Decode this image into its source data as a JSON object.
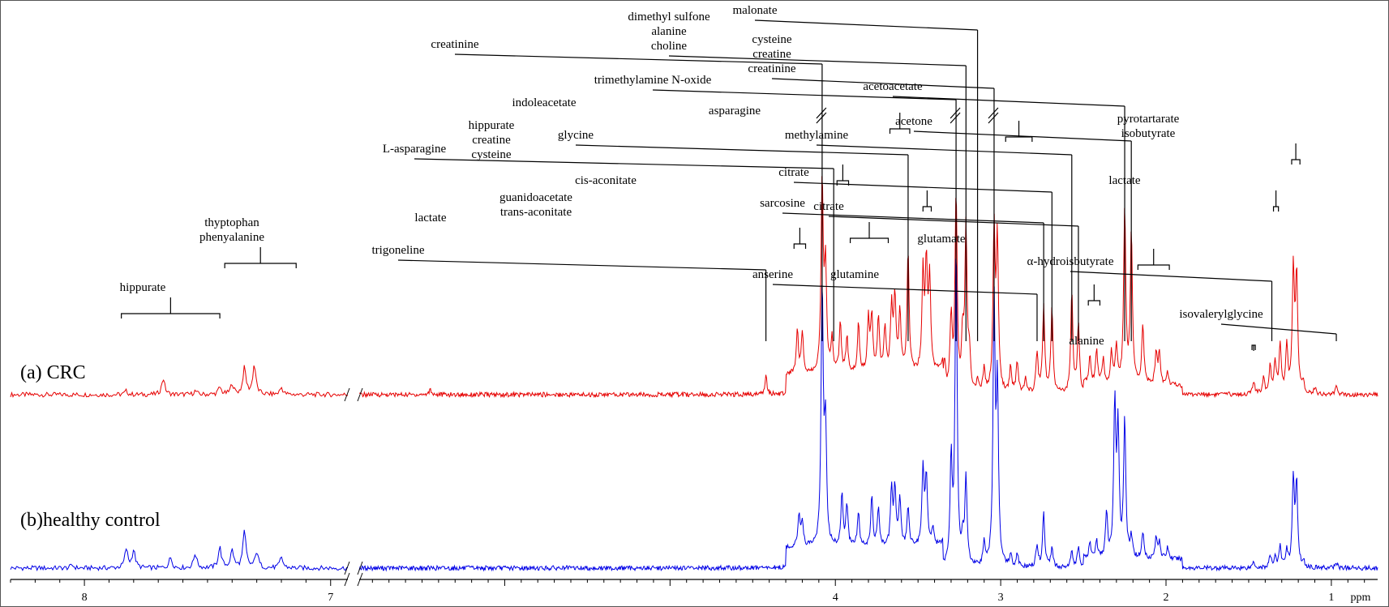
{
  "chart_data": {
    "type": "line",
    "title": "",
    "xlabel": "ppm",
    "ylabel": "",
    "xlim": [
      8.3,
      0.72
    ],
    "axis_break": [
      6.93,
      6.88
    ],
    "ticks": [
      {
        "value": 8,
        "label": "8"
      },
      {
        "value": 7,
        "label": "7"
      },
      {
        "value": 4,
        "label": "4"
      },
      {
        "value": 3,
        "label": "3"
      },
      {
        "value": 2,
        "label": "2"
      },
      {
        "value": 1,
        "label": "1"
      }
    ],
    "series": [
      {
        "name": "(a) CRC",
        "color": "#e60000",
        "baseline_note": "upper trace",
        "peaks": [
          [
            7.83,
            0.06
          ],
          [
            7.68,
            0.28
          ],
          [
            7.55,
            0.06
          ],
          [
            7.45,
            0.12
          ],
          [
            7.4,
            0.18
          ],
          [
            7.35,
            0.45
          ],
          [
            7.31,
            0.5
          ],
          [
            7.2,
            0.12
          ],
          [
            6.45,
            0.1
          ],
          [
            4.42,
            0.33
          ],
          [
            4.23,
            0.72
          ],
          [
            4.2,
            0.68
          ],
          [
            4.08,
            3.3
          ],
          [
            4.06,
            1.8
          ],
          [
            4.02,
            0.58
          ],
          [
            3.97,
            0.85
          ],
          [
            3.93,
            0.62
          ],
          [
            3.86,
            0.86
          ],
          [
            3.8,
            0.9
          ],
          [
            3.78,
            0.95
          ],
          [
            3.74,
            0.92
          ],
          [
            3.7,
            0.8
          ],
          [
            3.66,
            1.1
          ],
          [
            3.64,
            1.25
          ],
          [
            3.61,
            1.05
          ],
          [
            3.56,
            2.05
          ],
          [
            3.47,
            1.65
          ],
          [
            3.45,
            1.8
          ],
          [
            3.43,
            1.58
          ],
          [
            3.34,
            0.55
          ],
          [
            3.3,
            1.3
          ],
          [
            3.27,
            3.4
          ],
          [
            3.23,
            0.9
          ],
          [
            3.21,
            2.8
          ],
          [
            3.19,
            0.65
          ],
          [
            3.14,
            0.18
          ],
          [
            3.1,
            0.4
          ],
          [
            3.04,
            2.8
          ],
          [
            3.02,
            2.6
          ],
          [
            2.94,
            0.45
          ],
          [
            2.9,
            0.55
          ],
          [
            2.85,
            0.3
          ],
          [
            2.78,
            0.7
          ],
          [
            2.74,
            1.5
          ],
          [
            2.69,
            1.5
          ],
          [
            2.57,
            1.75
          ],
          [
            2.53,
            1.2
          ],
          [
            2.46,
            0.45
          ],
          [
            2.42,
            0.6
          ],
          [
            2.38,
            0.42
          ],
          [
            2.33,
            0.55
          ],
          [
            2.3,
            0.65
          ],
          [
            2.25,
            3.0
          ],
          [
            2.21,
            2.6
          ],
          [
            2.14,
            1.05
          ],
          [
            2.06,
            0.55
          ],
          [
            2.04,
            0.55
          ],
          [
            1.99,
            0.22
          ],
          [
            1.47,
            0.22
          ],
          [
            1.41,
            0.3
          ],
          [
            1.37,
            0.48
          ],
          [
            1.34,
            0.55
          ],
          [
            1.31,
            0.85
          ],
          [
            1.27,
            0.78
          ],
          [
            1.23,
            2.1
          ],
          [
            1.21,
            2.0
          ],
          [
            1.17,
            0.15
          ],
          [
            1.1,
            0.12
          ],
          [
            0.97,
            0.12
          ]
        ]
      },
      {
        "name": "(b)healthy control",
        "color": "#0000e6",
        "baseline_note": "lower trace",
        "peaks": [
          [
            8.05,
            0.05
          ],
          [
            7.83,
            0.32
          ],
          [
            7.8,
            0.3
          ],
          [
            7.65,
            0.18
          ],
          [
            7.55,
            0.25
          ],
          [
            7.45,
            0.35
          ],
          [
            7.4,
            0.3
          ],
          [
            7.35,
            0.62
          ],
          [
            7.3,
            0.28
          ],
          [
            7.2,
            0.18
          ],
          [
            4.22,
            0.55
          ],
          [
            4.2,
            0.45
          ],
          [
            4.08,
            4.5
          ],
          [
            4.06,
            2.0
          ],
          [
            3.96,
            0.9
          ],
          [
            3.93,
            0.7
          ],
          [
            3.86,
            0.6
          ],
          [
            3.78,
            0.85
          ],
          [
            3.74,
            0.65
          ],
          [
            3.66,
            1.0
          ],
          [
            3.64,
            0.95
          ],
          [
            3.61,
            0.8
          ],
          [
            3.56,
            0.7
          ],
          [
            3.47,
            1.35
          ],
          [
            3.45,
            1.2
          ],
          [
            3.41,
            0.3
          ],
          [
            3.3,
            1.8
          ],
          [
            3.27,
            5.5
          ],
          [
            3.23,
            0.4
          ],
          [
            3.21,
            1.5
          ],
          [
            3.1,
            0.4
          ],
          [
            3.04,
            4.5
          ],
          [
            3.02,
            3.0
          ],
          [
            2.94,
            0.2
          ],
          [
            2.9,
            0.22
          ],
          [
            2.78,
            0.4
          ],
          [
            2.74,
            0.95
          ],
          [
            2.69,
            0.35
          ],
          [
            2.57,
            0.3
          ],
          [
            2.53,
            0.35
          ],
          [
            2.46,
            0.25
          ],
          [
            2.42,
            0.3
          ],
          [
            2.36,
            0.75
          ],
          [
            2.31,
            2.6
          ],
          [
            2.29,
            2.2
          ],
          [
            2.25,
            2.4
          ],
          [
            2.21,
            0.35
          ],
          [
            2.14,
            0.45
          ],
          [
            2.06,
            0.35
          ],
          [
            2.04,
            0.3
          ],
          [
            1.99,
            0.2
          ],
          [
            1.47,
            0.12
          ],
          [
            1.37,
            0.2
          ],
          [
            1.34,
            0.2
          ],
          [
            1.31,
            0.35
          ],
          [
            1.27,
            0.3
          ],
          [
            1.23,
            1.5
          ],
          [
            1.21,
            1.4
          ],
          [
            1.17,
            0.1
          ],
          [
            0.97,
            0.1
          ]
        ]
      }
    ],
    "broken_peaks": [
      {
        "x": 4.08,
        "series": "(a) CRC"
      },
      {
        "x": 3.27,
        "series": "(a) CRC"
      },
      {
        "x": 3.04,
        "series": "(a) CRC"
      }
    ],
    "annotations": [
      {
        "lines": [
          "hippurate"
        ],
        "bracket": [
          7.85,
          7.45
        ],
        "level": 0.55
      },
      {
        "lines": [
          "thyptophan",
          "phenyalanine"
        ],
        "bracket": [
          7.43,
          7.14
        ],
        "level": 0.55
      },
      {
        "lines": [
          "trigoneline"
        ],
        "x": 4.42,
        "level": 0.33
      },
      {
        "lines": [
          "lactate"
        ],
        "bracket": [
          4.25,
          4.18
        ],
        "level": 0.72
      },
      {
        "lines": [
          "L-asparagine"
        ],
        "x": 4.01
      },
      {
        "lines": [
          "creatinine"
        ],
        "x": 4.08
      },
      {
        "lines": [
          "hippurate",
          "creatine",
          "cysteine"
        ],
        "bracket": [
          3.99,
          3.92
        ]
      },
      {
        "lines": [
          "guanidoacetate",
          "trans-aconitate"
        ],
        "bracket": [
          3.91,
          3.68
        ]
      },
      {
        "lines": [
          "indoleacetate"
        ],
        "bracket": [
          3.67,
          3.55
        ]
      },
      {
        "lines": [
          "glycine"
        ],
        "x": 3.56
      },
      {
        "lines": [
          "cis-aconitate"
        ],
        "bracket": [
          3.47,
          3.42
        ]
      },
      {
        "lines": [
          "trimethylamine N-oxide"
        ],
        "x": 3.27
      },
      {
        "lines": [
          "dimethyl sulfone",
          "alanine",
          "choline"
        ],
        "x": 3.21
      },
      {
        "lines": [
          "malonate"
        ],
        "x": 3.14
      },
      {
        "lines": [
          "cysteine",
          "creatine",
          "creatinine"
        ],
        "x": 3.04
      },
      {
        "lines": [
          "asparagine"
        ],
        "bracket": [
          2.97,
          2.81
        ]
      },
      {
        "lines": [
          "anserine"
        ],
        "x": 2.78
      },
      {
        "lines": [
          "sarcosine"
        ],
        "x": 2.74
      },
      {
        "lines": [
          "citrate"
        ],
        "x": 2.69
      },
      {
        "lines": [
          "methylamine"
        ],
        "x": 2.57
      },
      {
        "lines": [
          "citrate"
        ],
        "x": 2.53
      },
      {
        "lines": [
          "glutamine"
        ],
        "bracket": [
          2.47,
          2.4
        ]
      },
      {
        "lines": [
          "glutamate"
        ],
        "bracket": [
          2.17,
          1.98
        ]
      },
      {
        "lines": [
          "acetoacetate"
        ],
        "x": 2.25
      },
      {
        "lines": [
          "acetone"
        ],
        "x": 2.21
      },
      {
        "lines": [
          "alanine"
        ],
        "bracket": [
          1.48,
          1.46
        ]
      },
      {
        "lines": [
          "α-hydroisbutyrate"
        ],
        "x": 1.36
      },
      {
        "lines": [
          "lactate"
        ],
        "bracket": [
          1.35,
          1.32
        ]
      },
      {
        "lines": [
          "pyrotartarate",
          "isobutyrate"
        ],
        "bracket": [
          1.24,
          1.19
        ]
      },
      {
        "lines": [
          "isovalerylglycine"
        ],
        "x": 0.97
      }
    ]
  }
}
